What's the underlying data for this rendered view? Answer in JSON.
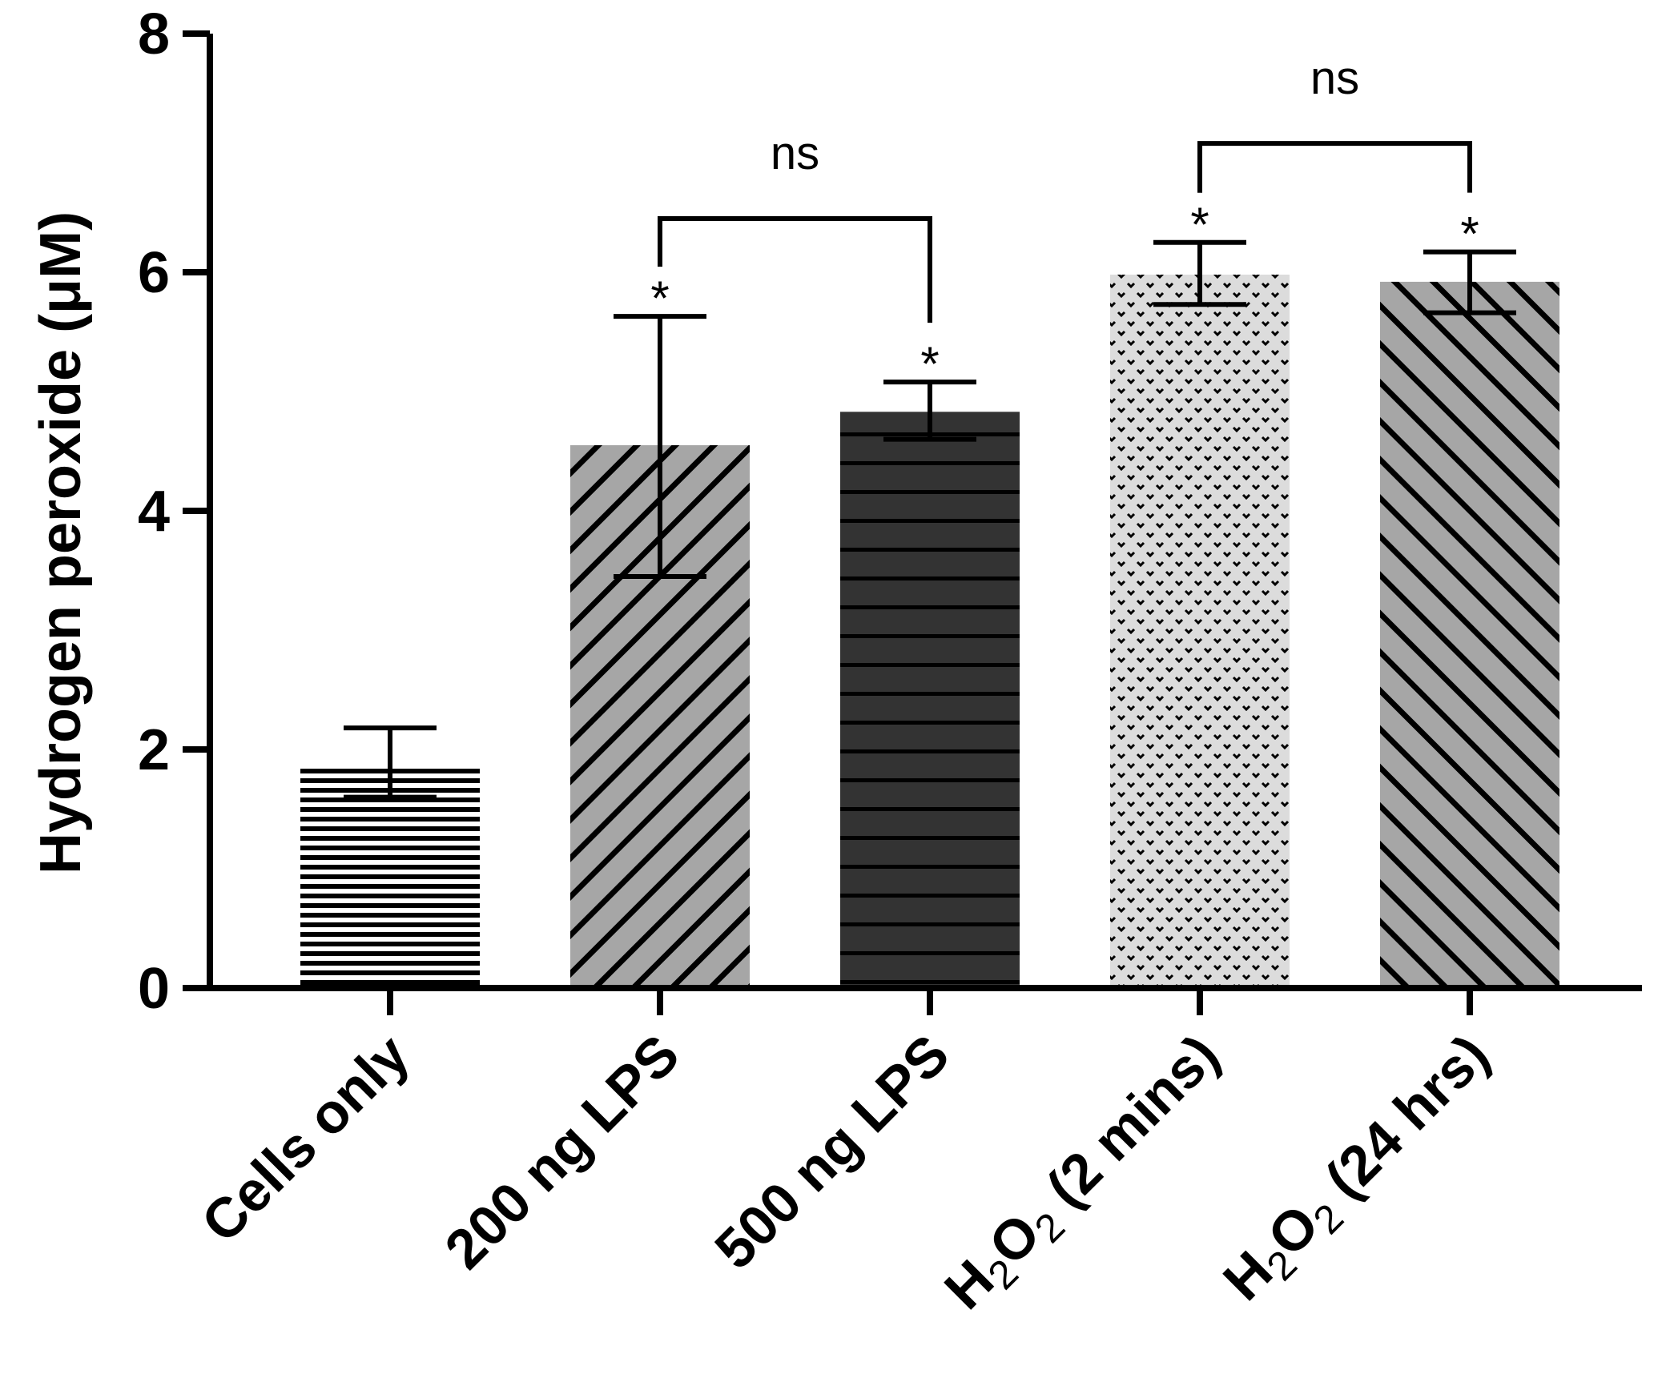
{
  "chart_data": {
    "type": "bar",
    "title": "",
    "xlabel": "",
    "ylabel": "Hydrogen peroxide (μM)",
    "ylim": [
      0,
      8
    ],
    "yticks": [
      "0",
      "2",
      "4",
      "6",
      "8"
    ],
    "categories": [
      {
        "id": "cells",
        "label": "Cells only",
        "pattern": "hstripe-fine",
        "value": 1.85,
        "err_low": 1.6,
        "err_high": 2.18,
        "star": ""
      },
      {
        "id": "lps200",
        "label": "200 ng LPS",
        "pattern": "diag-gray",
        "value": 4.55,
        "err_low": 3.45,
        "err_high": 5.63,
        "star": "*"
      },
      {
        "id": "lps500",
        "label": "500 ng LPS",
        "pattern": "hstripe-dark",
        "value": 4.83,
        "err_low": 4.6,
        "err_high": 5.08,
        "star": "*"
      },
      {
        "id": "h2o2_2m",
        "label_parts": [
          "H",
          "2",
          "O",
          "2",
          " (2 mins)"
        ],
        "pattern": "dots-light",
        "value": 5.98,
        "err_low": 5.73,
        "err_high": 6.25,
        "star": "*"
      },
      {
        "id": "h2o2_24h",
        "label_parts": [
          "H",
          "2",
          "O",
          "2",
          " (24 hrs)"
        ],
        "pattern": "diag-gray2",
        "value": 5.92,
        "err_low": 5.66,
        "err_high": 6.17,
        "star": "*"
      }
    ],
    "comparisons": [
      {
        "from": 1,
        "to": 2,
        "label": "ns",
        "level": 6.45
      },
      {
        "from": 3,
        "to": 4,
        "label": "ns",
        "level": 7.08
      }
    ]
  },
  "colors": {
    "axis": "#000000",
    "bar_gray": "#a6a6a6",
    "bar_dark": "#333333",
    "bar_light": "#dcdcdc"
  }
}
